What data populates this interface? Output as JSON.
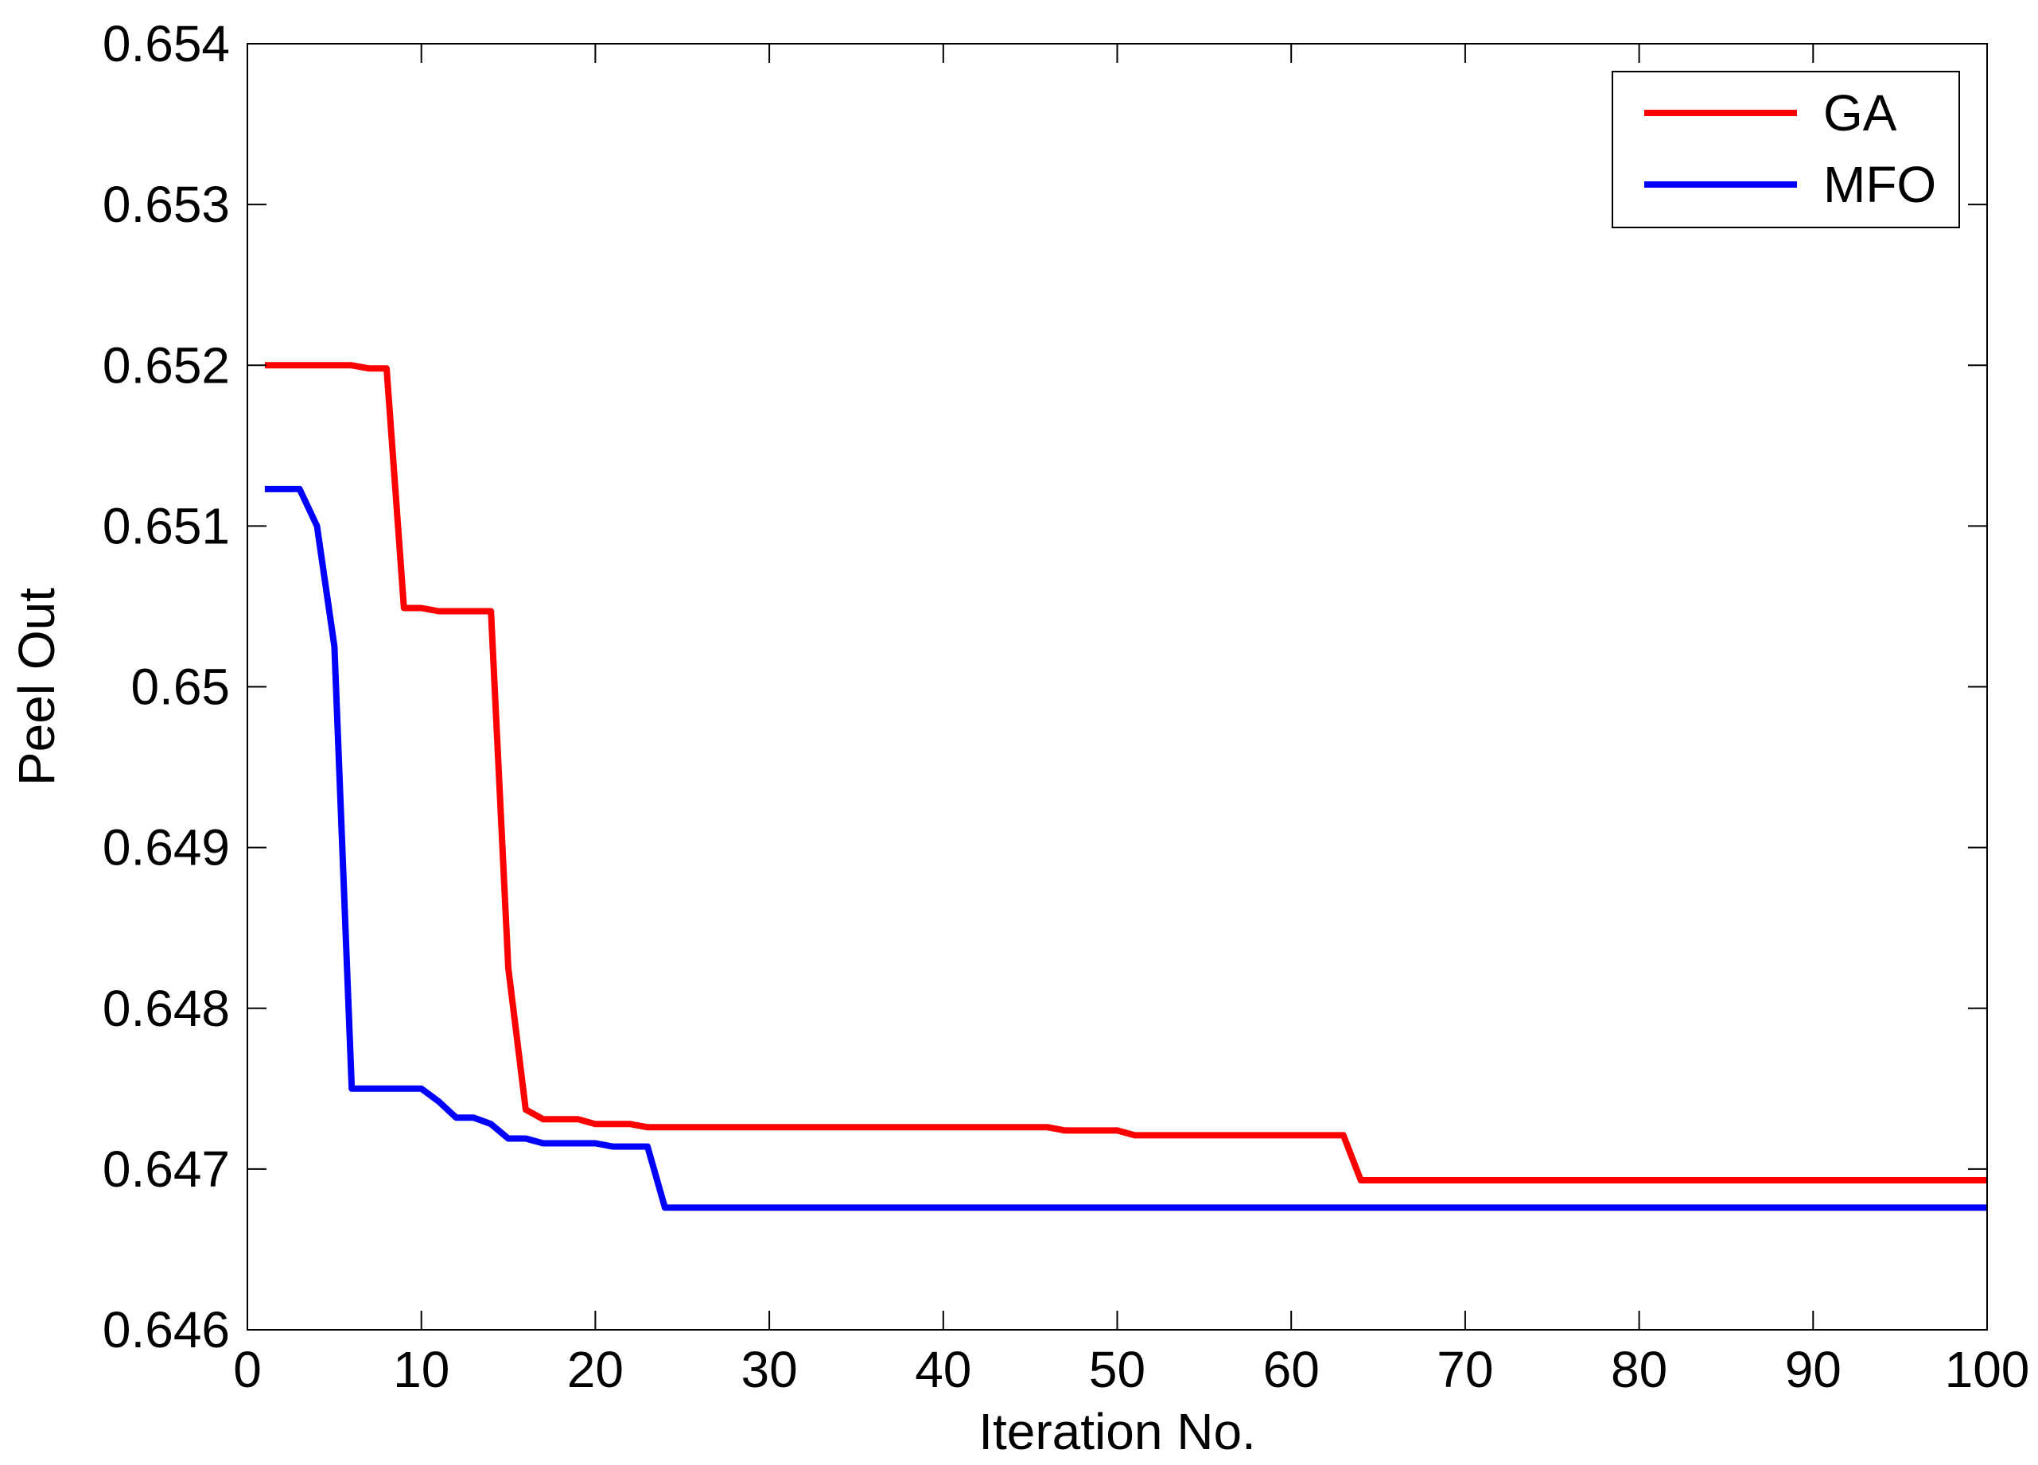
{
  "chart_data": {
    "type": "line",
    "title": "",
    "xlabel": "Iteration No.",
    "ylabel": "Peel Out",
    "xlim": [
      0,
      100
    ],
    "ylim": [
      0.646,
      0.654
    ],
    "xticks": [
      0,
      10,
      20,
      30,
      40,
      50,
      60,
      70,
      80,
      90,
      100
    ],
    "xtick_labels": [
      "0",
      "10",
      "20",
      "30",
      "40",
      "50",
      "60",
      "70",
      "80",
      "90",
      "100"
    ],
    "yticks": [
      0.646,
      0.647,
      0.648,
      0.649,
      0.65,
      0.651,
      0.652,
      0.653,
      0.654
    ],
    "ytick_labels": [
      "0.646",
      "0.647",
      "0.648",
      "0.649",
      "0.65",
      "0.651",
      "0.652",
      "0.653",
      "0.654"
    ],
    "grid": false,
    "legend_position": "top-right",
    "series": [
      {
        "name": "GA",
        "color": "#ff0000",
        "points": [
          [
            1,
            0.652
          ],
          [
            6,
            0.652
          ],
          [
            7,
            0.65198
          ],
          [
            8,
            0.65198
          ],
          [
            9,
            0.65049
          ],
          [
            10,
            0.65049
          ],
          [
            11,
            0.65047
          ],
          [
            14,
            0.65047
          ],
          [
            15,
            0.64825
          ],
          [
            16,
            0.64737
          ],
          [
            17,
            0.64731
          ],
          [
            19,
            0.64731
          ],
          [
            20,
            0.64728
          ],
          [
            22,
            0.64728
          ],
          [
            23,
            0.64726
          ],
          [
            46,
            0.64726
          ],
          [
            47,
            0.64724
          ],
          [
            50,
            0.64724
          ],
          [
            51,
            0.64721
          ],
          [
            63,
            0.64721
          ],
          [
            64,
            0.64693
          ],
          [
            100,
            0.64693
          ]
        ]
      },
      {
        "name": "MFO",
        "color": "#0000ff",
        "points": [
          [
            1,
            0.65123
          ],
          [
            3,
            0.65123
          ],
          [
            4,
            0.651
          ],
          [
            5,
            0.65025
          ],
          [
            6,
            0.6475
          ],
          [
            10,
            0.6475
          ],
          [
            11,
            0.64742
          ],
          [
            12,
            0.64732
          ],
          [
            13,
            0.64732
          ],
          [
            14,
            0.64728
          ],
          [
            15,
            0.64719
          ],
          [
            16,
            0.64719
          ],
          [
            17,
            0.64716
          ],
          [
            20,
            0.64716
          ],
          [
            21,
            0.64714
          ],
          [
            23,
            0.64714
          ],
          [
            24,
            0.64676
          ],
          [
            100,
            0.64676
          ]
        ]
      }
    ]
  }
}
